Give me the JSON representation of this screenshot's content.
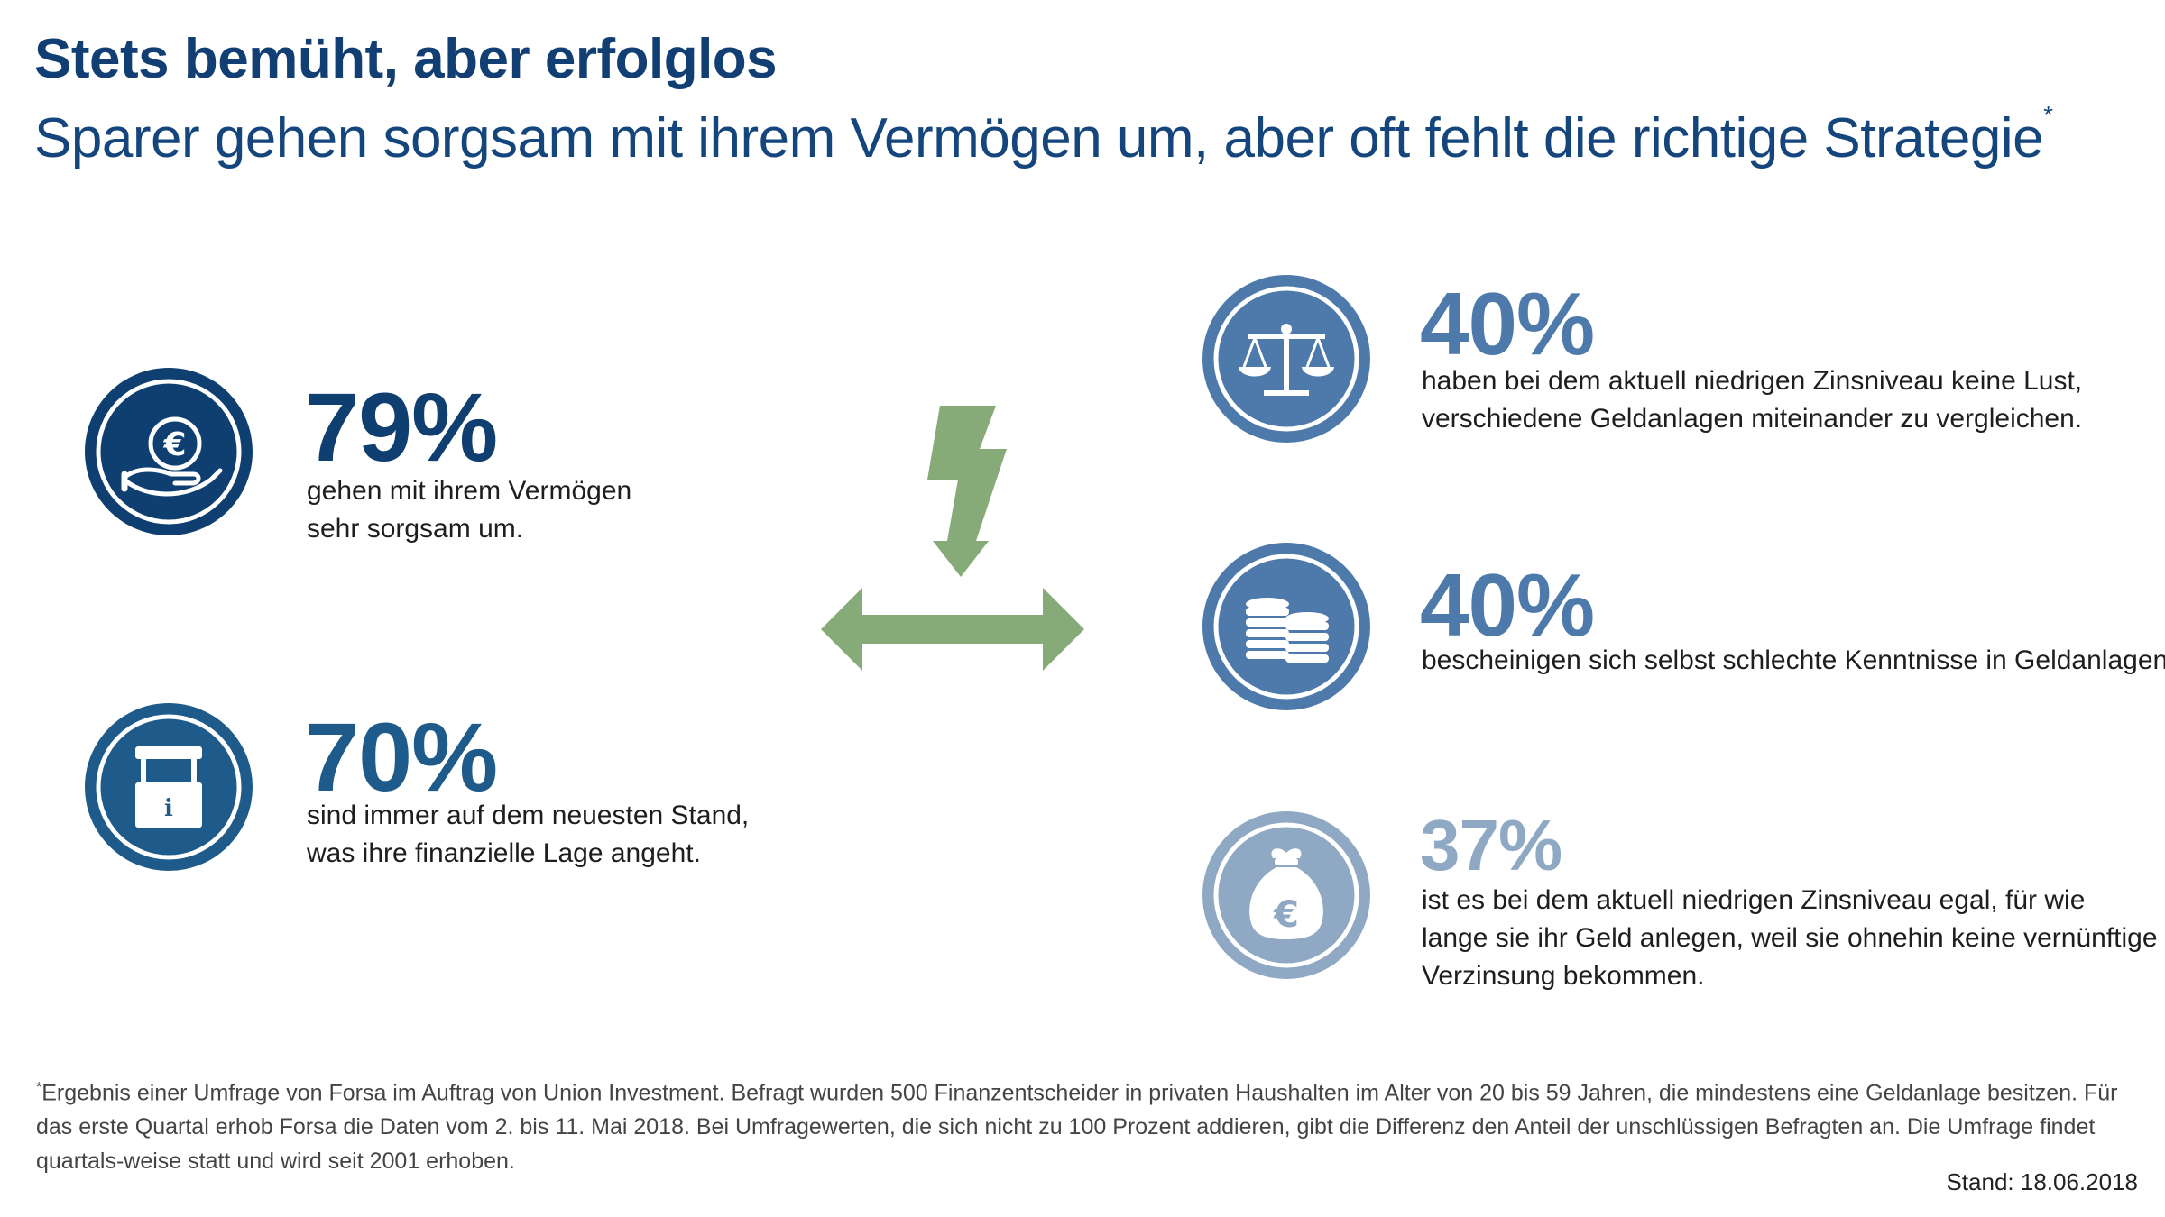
{
  "header": {
    "title": "Stets bemüht, aber erfolglos",
    "subtitle": "Sparer gehen sorgsam mit ihrem Vermögen um, aber oft fehlt die richtige Strategie",
    "subtitle_marker": "*"
  },
  "left_stats": [
    {
      "percent": "79%",
      "line1": "gehen mit ihrem Vermögen",
      "line2": "sehr sorgsam um.",
      "icon": "hand-euro-coin-icon",
      "color": "#0f3f70"
    },
    {
      "percent": "70%",
      "line1": "sind immer auf dem neuesten Stand,",
      "line2": "was ihre finanzielle Lage angeht.",
      "icon": "info-kiosk-icon",
      "color": "#1e5b8a"
    }
  ],
  "center": {
    "lightning_icon": "lightning-bolt-icon",
    "arrow_icon": "double-arrow-icon",
    "accent_color": "#86ab78"
  },
  "right_stats": [
    {
      "percent": "40%",
      "line1": "haben bei dem aktuell niedrigen Zinsniveau keine Lust,",
      "line2": "verschiedene Geldanlagen miteinander zu vergleichen.",
      "icon": "balance-scale-icon",
      "color": "#4d7aaa"
    },
    {
      "percent": "40%",
      "line1": "bescheinigen sich selbst schlechte Kenntnisse in Geldanlagen.",
      "icon": "coin-stacks-icon",
      "color": "#4d7aaa"
    },
    {
      "percent": "37%",
      "line1": "ist es bei dem aktuell niedrigen Zinsniveau egal, für wie",
      "line2": "lange sie ihr Geld anlegen, weil sie ohnehin keine vernünftige",
      "line3": "Verzinsung bekommen.",
      "icon": "money-bag-euro-icon",
      "color": "#8fa8c3"
    }
  ],
  "footnote": {
    "marker": "*",
    "text": "Ergebnis einer Umfrage von Forsa im Auftrag von Union Investment. Befragt wurden 500 Finanzentscheider in privaten Haushalten im Alter von 20 bis 59 Jahren, die mindestens eine Geldanlage besitzen. Für das erste Quartal erhob Forsa die Daten vom 2. bis 11. Mai 2018. Bei Umfragewerten, die sich nicht zu 100 Prozent addieren, gibt die Differenz den Anteil der unschlüssigen Befragten an. Die Umfrage findet quartals-weise statt und wird seit 2001 erhoben."
  },
  "stand": "Stand: 18.06.2018"
}
